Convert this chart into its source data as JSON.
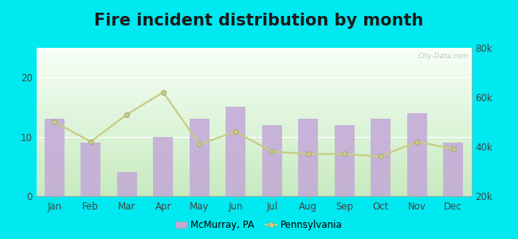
{
  "title": "Fire incident distribution by month",
  "months": [
    "Jan",
    "Feb",
    "Mar",
    "Apr",
    "May",
    "Jun",
    "Jul",
    "Aug",
    "Sep",
    "Oct",
    "Nov",
    "Dec"
  ],
  "mcmurray_values": [
    13,
    9,
    4,
    10,
    13,
    15,
    12,
    13,
    12,
    13,
    14,
    9
  ],
  "pennsylvania_values": [
    50000,
    42000,
    53000,
    62000,
    41000,
    46000,
    38000,
    37000,
    37000,
    36000,
    42000,
    39000
  ],
  "bar_color": "#c4a8d8",
  "line_color": "#c8cc82",
  "background_top": "#f8fef8",
  "background_bottom": "#c8e8c0",
  "outer_background": "#00e8f0",
  "left_ylim": [
    0,
    25
  ],
  "right_ylim": [
    20000,
    80000
  ],
  "left_yticks": [
    0,
    10,
    20
  ],
  "right_yticks": [
    20000,
    40000,
    60000,
    80000
  ],
  "title_fontsize": 15,
  "watermark": "City-Data.com",
  "legend_mcmurray": "McMurray, PA",
  "legend_pennsylvania": "Pennsylvania"
}
